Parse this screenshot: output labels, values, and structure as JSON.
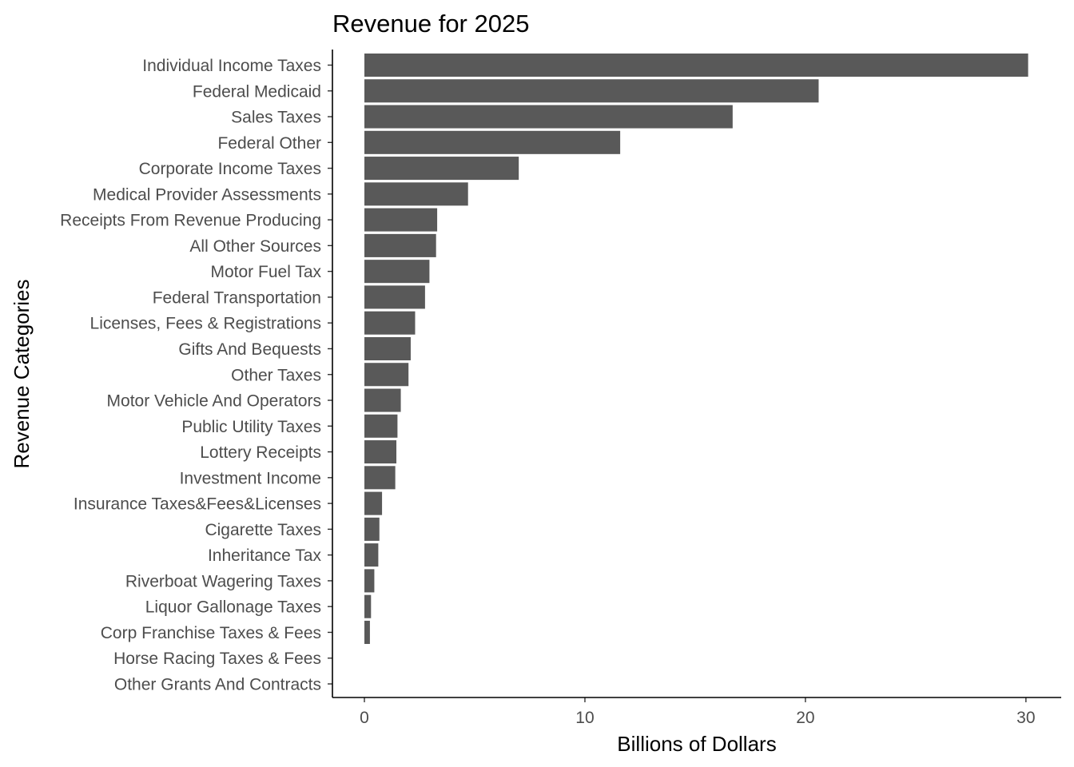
{
  "chart_data": {
    "type": "bar",
    "orientation": "horizontal",
    "title": "Revenue for 2025",
    "xlabel": "Billions of Dollars",
    "ylabel": "Revenue Categories",
    "xlim": [
      -1.45,
      31.6
    ],
    "xticks": [
      0,
      10,
      20,
      30
    ],
    "grid": false,
    "bar_color": "#595959",
    "categories": [
      "Individual Income Taxes",
      "Federal Medicaid",
      "Sales Taxes",
      "Federal Other",
      "Corporate Income Taxes",
      "Medical Provider Assessments",
      "Receipts From Revenue Producing",
      "All Other Sources",
      "Motor Fuel Tax",
      "Federal Transportation",
      "Licenses, Fees & Registrations",
      "Gifts And Bequests",
      "Other Taxes",
      "Motor Vehicle And Operators",
      "Public Utility Taxes",
      "Lottery Receipts",
      "Investment Income",
      "Insurance Taxes&Fees&Licenses",
      "Cigarette Taxes",
      "Inheritance Tax",
      "Riverboat Wagering Taxes",
      "Liquor Gallonage Taxes",
      "Corp Franchise Taxes & Fees",
      "Horse Racing Taxes & Fees",
      "Other Grants And Contracts"
    ],
    "values": [
      30.1,
      20.6,
      16.7,
      11.6,
      7.0,
      4.7,
      3.3,
      3.25,
      2.95,
      2.75,
      2.3,
      2.1,
      2.0,
      1.65,
      1.5,
      1.45,
      1.4,
      0.8,
      0.68,
      0.63,
      0.45,
      0.3,
      0.25,
      0.0,
      0.0
    ]
  }
}
